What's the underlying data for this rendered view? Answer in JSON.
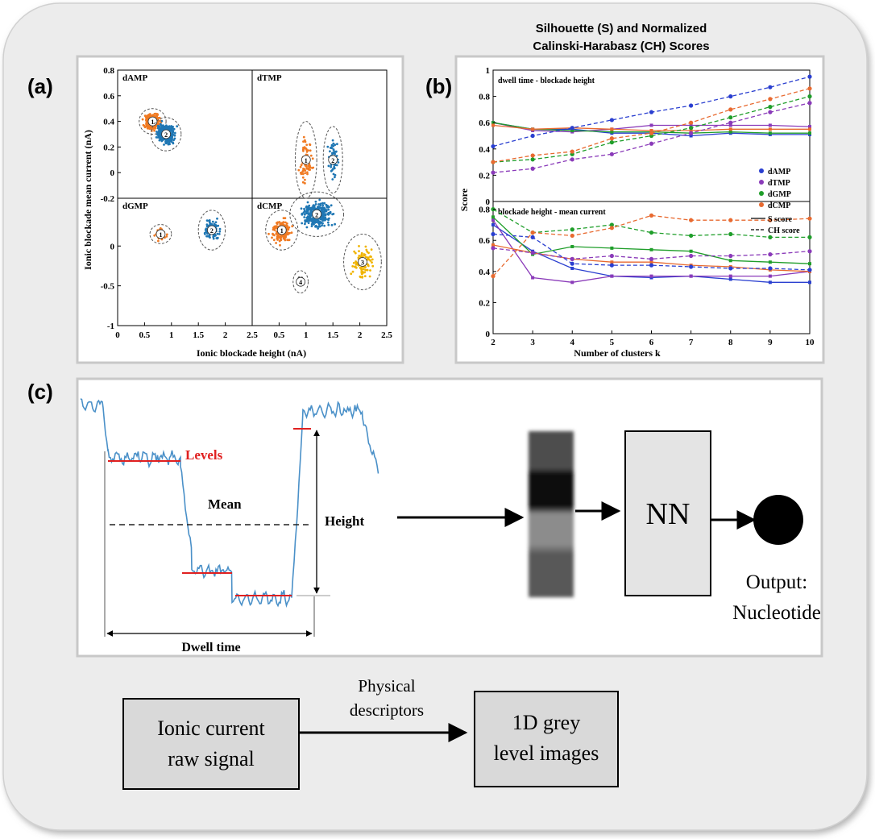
{
  "panel_labels": {
    "a": "(a)",
    "b": "(b)",
    "c": "(c)"
  },
  "colors": {
    "background": "#ffffff",
    "card": "#ececec",
    "panel_border": "#c9c9c9",
    "dAMP_scatter": "#1f77b4",
    "orange": "#f07a22",
    "yellow": "#f0b400",
    "signal": "#4a90c8",
    "levels": "#e02020",
    "box_fill": "#d9d9d9"
  },
  "chart_data": [
    {
      "type": "scatter",
      "panel": "a",
      "xlabel": "Ionic blockade height (nA)",
      "ylabel": "Ionic blockade mean current (nA)",
      "xlim": [
        0,
        2.5
      ],
      "ylim": [
        -1,
        0.8
      ],
      "top_y_ticks": [
        "0.8",
        "0.6",
        "0.4",
        "0.2",
        "0",
        "-0.2"
      ],
      "bottom_y_ticks": [
        "0",
        "-0.5",
        "-1"
      ],
      "left_x_ticks": [
        "0",
        "0.5",
        "1",
        "1.5",
        "2",
        "2.5"
      ],
      "right_x_ticks": [
        "0.5",
        "1",
        "1.5",
        "2",
        "2.5"
      ],
      "subplots": [
        {
          "title": "dAMP",
          "clusters": [
            {
              "label": "1",
              "color": "#f07a22",
              "cx": 0.65,
              "cy": 0.4,
              "rx": 0.25,
              "ry": 0.1,
              "n": 320
            },
            {
              "label": "2",
              "color": "#1f77b4",
              "cx": 0.9,
              "cy": 0.3,
              "rx": 0.28,
              "ry": 0.13,
              "n": 380
            }
          ]
        },
        {
          "title": "dTMP",
          "clusters": [
            {
              "label": "1",
              "color": "#f07a22",
              "cx": 1.0,
              "cy": 0.1,
              "rx": 0.2,
              "ry": 0.3,
              "n": 90
            },
            {
              "label": "2",
              "color": "#1f77b4",
              "cx": 1.5,
              "cy": 0.1,
              "rx": 0.18,
              "ry": 0.26,
              "n": 60
            }
          ]
        },
        {
          "title": "dGMP",
          "clusters": [
            {
              "label": "1",
              "color": "#f07a22",
              "cx": 0.8,
              "cy": 0.15,
              "rx": 0.2,
              "ry": 0.12,
              "n": 45
            },
            {
              "label": "2",
              "color": "#1f77b4",
              "cx": 1.75,
              "cy": 0.2,
              "rx": 0.25,
              "ry": 0.25,
              "n": 120
            }
          ]
        },
        {
          "title": "dCMP",
          "clusters": [
            {
              "label": "1",
              "color": "#f07a22",
              "cx": 0.55,
              "cy": 0.2,
              "rx": 0.3,
              "ry": 0.25,
              "n": 220
            },
            {
              "label": "2",
              "color": "#1f77b4",
              "cx": 1.2,
              "cy": 0.4,
              "rx": 0.5,
              "ry": 0.28,
              "n": 330
            },
            {
              "label": "3",
              "color": "#f0b400",
              "cx": 2.05,
              "cy": -0.2,
              "rx": 0.35,
              "ry": 0.35,
              "n": 110
            },
            {
              "label": "4",
              "color": "#555555",
              "cx": 0.9,
              "cy": -0.45,
              "rx": 0.14,
              "ry": 0.14,
              "n": 12
            }
          ]
        }
      ]
    },
    {
      "type": "line",
      "panel": "b",
      "title": "Silhouette (S) and Normalized Calinski-Harabasz (CH) Scores",
      "xlabel": "Number of clusters k",
      "ylabel": "Score",
      "x": [
        2,
        3,
        4,
        5,
        6,
        7,
        8,
        9,
        10
      ],
      "ylim": [
        0,
        1
      ],
      "top_y_ticks": [
        "1",
        "0.8",
        "0.6",
        "0.4",
        "0.2",
        "0"
      ],
      "bottom_y_ticks": [
        "0.8",
        "0.6",
        "0.4",
        "0.2",
        "0"
      ],
      "x_ticks": [
        "2",
        "3",
        "4",
        "5",
        "6",
        "7",
        "8",
        "9",
        "10"
      ],
      "legend": {
        "position": "right",
        "entries": [
          {
            "name": "dAMP",
            "color": "#2a3fd0"
          },
          {
            "name": "dTMP",
            "color": "#8a3ab9"
          },
          {
            "name": "dGMP",
            "color": "#1f9e2a"
          },
          {
            "name": "dCMP",
            "color": "#e86a30"
          }
        ],
        "style_entries": [
          {
            "name": "S score",
            "dash": "solid"
          },
          {
            "name": "CH score",
            "dash": "dashed"
          }
        ]
      },
      "subplots": [
        {
          "title": "dwell time - blockade height",
          "series": [
            {
              "name": "dAMP",
              "kind": "S",
              "values": [
                0.6,
                0.55,
                0.55,
                0.52,
                0.52,
                0.5,
                0.52,
                0.51,
                0.51
              ]
            },
            {
              "name": "dTMP",
              "kind": "S",
              "values": [
                0.6,
                0.54,
                0.53,
                0.55,
                0.58,
                0.58,
                0.58,
                0.58,
                0.57
              ]
            },
            {
              "name": "dGMP",
              "kind": "S",
              "values": [
                0.6,
                0.55,
                0.54,
                0.53,
                0.53,
                0.52,
                0.53,
                0.52,
                0.52
              ]
            },
            {
              "name": "dCMP",
              "kind": "S",
              "values": [
                0.58,
                0.55,
                0.56,
                0.55,
                0.54,
                0.54,
                0.55,
                0.55,
                0.55
              ]
            },
            {
              "name": "dAMP",
              "kind": "CH",
              "values": [
                0.42,
                0.5,
                0.56,
                0.62,
                0.68,
                0.73,
                0.8,
                0.87,
                0.95
              ]
            },
            {
              "name": "dTMP",
              "kind": "CH",
              "values": [
                0.22,
                0.25,
                0.32,
                0.36,
                0.44,
                0.52,
                0.6,
                0.68,
                0.75
              ]
            },
            {
              "name": "dGMP",
              "kind": "CH",
              "values": [
                0.3,
                0.32,
                0.36,
                0.45,
                0.5,
                0.56,
                0.64,
                0.72,
                0.8
              ]
            },
            {
              "name": "dCMP",
              "kind": "CH",
              "values": [
                0.3,
                0.35,
                0.38,
                0.48,
                0.52,
                0.6,
                0.7,
                0.78,
                0.86
              ]
            }
          ]
        },
        {
          "title": "blockade height - mean current",
          "series": [
            {
              "name": "dAMP",
              "kind": "S",
              "values": [
                0.7,
                0.53,
                0.42,
                0.37,
                0.36,
                0.37,
                0.35,
                0.33,
                0.33
              ]
            },
            {
              "name": "dTMP",
              "kind": "S",
              "values": [
                0.73,
                0.36,
                0.33,
                0.37,
                0.37,
                0.37,
                0.37,
                0.37,
                0.4
              ]
            },
            {
              "name": "dGMP",
              "kind": "S",
              "values": [
                0.75,
                0.51,
                0.56,
                0.55,
                0.54,
                0.53,
                0.47,
                0.46,
                0.45
              ]
            },
            {
              "name": "dCMP",
              "kind": "S",
              "values": [
                0.57,
                0.52,
                0.48,
                0.46,
                0.46,
                0.44,
                0.43,
                0.41,
                0.4
              ]
            },
            {
              "name": "dAMP",
              "kind": "CH",
              "values": [
                0.64,
                0.62,
                0.45,
                0.44,
                0.44,
                0.43,
                0.42,
                0.42,
                0.41
              ]
            },
            {
              "name": "dTMP",
              "kind": "CH",
              "values": [
                0.55,
                0.52,
                0.48,
                0.5,
                0.48,
                0.5,
                0.5,
                0.51,
                0.53
              ]
            },
            {
              "name": "dGMP",
              "kind": "CH",
              "values": [
                0.8,
                0.65,
                0.67,
                0.7,
                0.65,
                0.63,
                0.64,
                0.62,
                0.62
              ]
            },
            {
              "name": "dCMP",
              "kind": "CH",
              "values": [
                0.37,
                0.65,
                0.63,
                0.68,
                0.76,
                0.73,
                0.73,
                0.73,
                0.74
              ]
            }
          ]
        }
      ]
    }
  ],
  "diagram": {
    "levels_label": "Levels",
    "mean_label": "Mean",
    "height_label": "Height",
    "dwell_label": "Dwell time",
    "nn_label": "NN",
    "output_line1": "Output:",
    "output_line2": "Nucleotide",
    "physical_line1": "Physical",
    "physical_line2": "descriptors",
    "ionic_line1": "Ionic current",
    "ionic_line2": "raw signal",
    "grey_line1": "1D grey",
    "grey_line2": "level images",
    "grey_levels": [
      0.3,
      0.05,
      0.55,
      0.35
    ]
  }
}
